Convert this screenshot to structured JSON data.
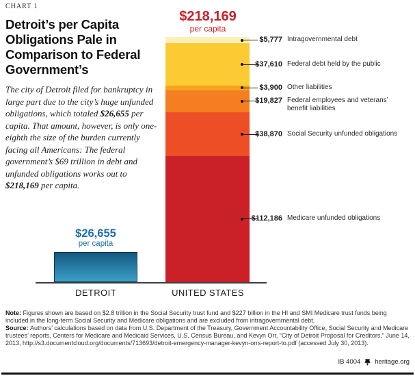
{
  "meta": {
    "chart_label": "CHART 1",
    "footer_id": "IB 4004",
    "footer_site": "heritage.org",
    "footer_logo": "liberty-bell-icon"
  },
  "header": {
    "title": "Detroit’s per Capita Obligations Pale in Comparison to Federal Government’s",
    "intro_parts": [
      {
        "text": "The city of Detroit filed for bankruptcy in large part due to the city’s huge unfunded obligations, which totaled ",
        "bold": false
      },
      {
        "text": "$26,655",
        "bold": true
      },
      {
        "text": " per capita. That amount, however, is only one-eighth the size of the burden currently facing all Americans: The federal government’s $69 trillion in debt and unfunded obligations works out to ",
        "bold": false
      },
      {
        "text": "$218,169",
        "bold": true
      },
      {
        "text": " per capita.",
        "bold": false
      }
    ]
  },
  "chart_data": {
    "type": "bar",
    "subtype": "stacked",
    "unit": "$ per capita",
    "ylim": [
      0,
      218169
    ],
    "legend_position": "right-callouts",
    "grid": false,
    "categories": [
      "DETROIT",
      "UNITED STATES"
    ],
    "bars": [
      {
        "category": "DETROIT",
        "total": 26655,
        "total_label": "$26,655",
        "total_sublabel": "per capita",
        "label_color": "#1e6fad",
        "color_top": "#14597f",
        "color_bottom": "#3aa0c8"
      },
      {
        "category": "UNITED STATES",
        "total": 218169,
        "total_label": "$218,169",
        "total_sublabel": "per capita",
        "label_color": "#c92128",
        "segments": [
          {
            "value": 5777,
            "value_label": "$5,777",
            "label": "Intragovernmental debt",
            "color": "#fcf0b8"
          },
          {
            "value": 37610,
            "value_label": "$37,610",
            "label": "Federal debt held by the public",
            "color": "#fccb33"
          },
          {
            "value": 3900,
            "value_label": "$3,900",
            "label": "Other liabilities",
            "color": "#f4a41f"
          },
          {
            "value": 19827,
            "value_label": "$19,827",
            "label": "Federal employees and veterans’\nbenefit liabilities",
            "color": "#f47e20"
          },
          {
            "value": 38870,
            "value_label": "$38,870",
            "label": "Social Security unfunded obligations",
            "color": "#ee4e26"
          },
          {
            "value": 112186,
            "value_label": "$112,186",
            "label": "Medicare unfunded obligations",
            "color": "#ca2027"
          }
        ]
      }
    ]
  },
  "footnotes": [
    {
      "label": "Note:",
      "text": "Figures shown are based on $2.8 trillion in the Social Security trust fund and $227 billion in the HI and SMI Medicare trust funds being included in the long-term Social Security and Medicare obligations and are excluded from intragovernmental debt."
    },
    {
      "label": "Source:",
      "text": "Authors’ calculations based on data from U.S. Department of the Treasury, Government Accountability Office, Social Security and Medicare trustees’ reports, Centers for Medicare and Medicaid Services, U.S. Census Bureau, and Kevyn Orr, “City of Detroit Proposal for Creditors,” June 14, 2013, http://s3.documentcloud.org/documents/713693/detroit-emergency-manager-kevyn-orrs-report-to.pdf (accessed July 30, 2013)."
    }
  ]
}
